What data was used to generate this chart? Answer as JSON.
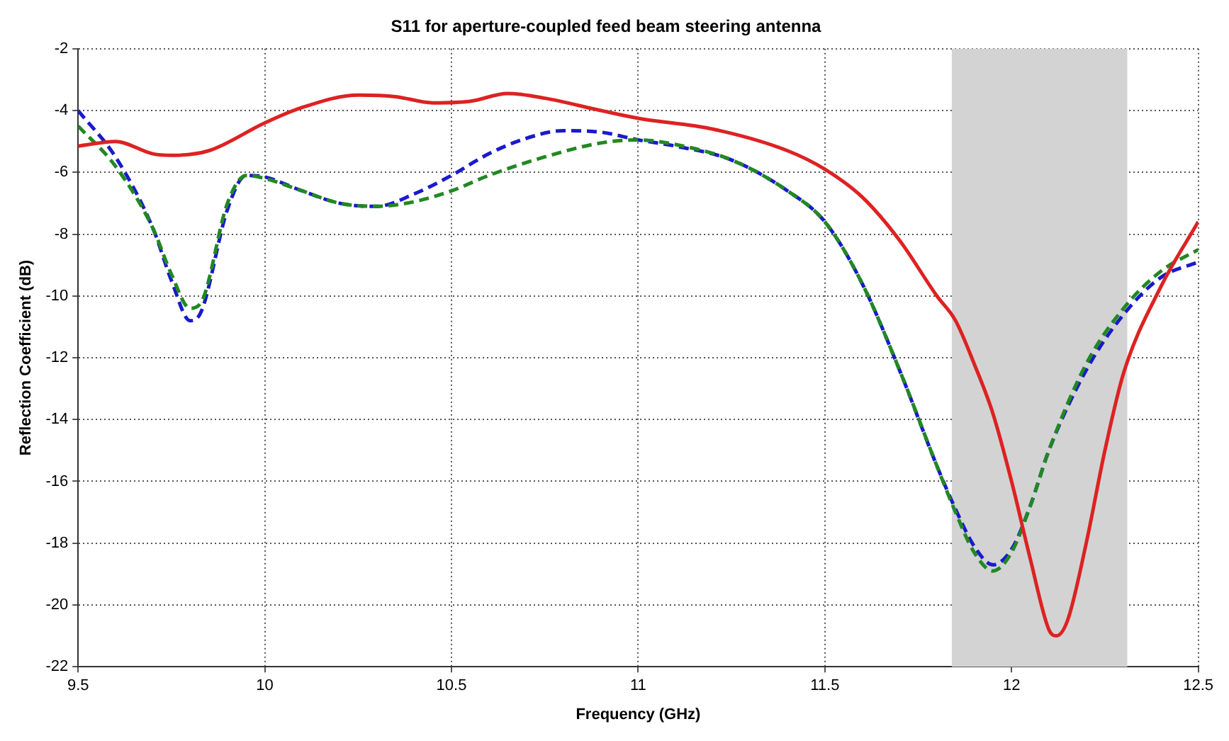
{
  "chart_data": {
    "type": "line",
    "title": "S11 for aperture-coupled feed beam steering antenna",
    "xlabel": "Frequency (GHz)",
    "ylabel": "Reflection Coefficient (dB)",
    "xlim": [
      9.5,
      12.5
    ],
    "xticks": [
      9.5,
      10,
      10.5,
      11,
      11.5,
      12,
      12.5
    ],
    "ylim": [
      -22,
      -2
    ],
    "yticks": [
      -22,
      -20,
      -18,
      -16,
      -14,
      -12,
      -10,
      -8,
      -6,
      -4,
      -2
    ],
    "grid": true,
    "marker": "none",
    "bands": [
      {
        "axis": "x",
        "from": 11.84,
        "to": 12.31,
        "color": "#d3d3d3"
      }
    ],
    "series": [
      {
        "color": "#dd2222",
        "line_style": "solid",
        "x": [
          9.5,
          9.6,
          9.7,
          9.75,
          9.85,
          10.0,
          10.1,
          10.25,
          10.35,
          10.45,
          10.55,
          10.65,
          10.75,
          10.9,
          11.0,
          11.2,
          11.4,
          11.5,
          11.6,
          11.7,
          11.8,
          11.85,
          11.9,
          11.95,
          12.0,
          12.05,
          12.1,
          12.12,
          12.15,
          12.2,
          12.25,
          12.3,
          12.4,
          12.5
        ],
        "values": [
          -5.15,
          -5.0,
          -5.4,
          -5.45,
          -5.3,
          -4.4,
          -3.9,
          -3.5,
          -3.55,
          -3.75,
          -3.7,
          -3.45,
          -3.6,
          -4.0,
          -4.25,
          -4.6,
          -5.3,
          -5.9,
          -6.8,
          -8.2,
          -10.0,
          -10.8,
          -12.2,
          -13.8,
          -16.0,
          -18.5,
          -20.8,
          -21.0,
          -20.5,
          -18.0,
          -15.0,
          -12.5,
          -9.7,
          -7.6
        ]
      },
      {
        "color": "#228822",
        "line_style": "dashed",
        "x": [
          9.5,
          9.6,
          9.7,
          9.75,
          9.8,
          9.83,
          9.9,
          9.95,
          10.0,
          10.1,
          10.2,
          10.3,
          10.4,
          10.5,
          10.6,
          10.75,
          10.9,
          11.0,
          11.1,
          11.25,
          11.4,
          11.5,
          11.6,
          11.7,
          11.8,
          11.85,
          11.9,
          11.95,
          12.0,
          12.05,
          12.1,
          12.2,
          12.3,
          12.4,
          12.5
        ],
        "values": [
          -4.5,
          -5.8,
          -7.8,
          -9.3,
          -10.4,
          -10.2,
          -7.0,
          -6.1,
          -6.2,
          -6.6,
          -7.0,
          -7.1,
          -6.95,
          -6.6,
          -6.1,
          -5.5,
          -5.05,
          -4.95,
          -5.1,
          -5.6,
          -6.6,
          -7.6,
          -9.6,
          -12.4,
          -15.5,
          -17.0,
          -18.3,
          -18.9,
          -18.3,
          -16.8,
          -15.0,
          -12.2,
          -10.4,
          -9.2,
          -8.5
        ]
      },
      {
        "color": "#1a1acc",
        "line_style": "dashed",
        "x": [
          9.5,
          9.6,
          9.7,
          9.75,
          9.8,
          9.83,
          9.9,
          9.95,
          10.0,
          10.1,
          10.2,
          10.3,
          10.4,
          10.5,
          10.6,
          10.7,
          10.8,
          10.9,
          11.0,
          11.1,
          11.25,
          11.4,
          11.5,
          11.6,
          11.7,
          11.8,
          11.85,
          11.9,
          11.95,
          12.0,
          12.05,
          12.1,
          12.2,
          12.3,
          12.4,
          12.5
        ],
        "values": [
          -4.0,
          -5.5,
          -7.8,
          -9.5,
          -10.8,
          -10.5,
          -7.2,
          -6.1,
          -6.15,
          -6.6,
          -7.0,
          -7.1,
          -6.7,
          -6.1,
          -5.4,
          -4.9,
          -4.65,
          -4.7,
          -4.95,
          -5.15,
          -5.6,
          -6.6,
          -7.6,
          -9.6,
          -12.4,
          -15.5,
          -16.9,
          -18.1,
          -18.7,
          -18.2,
          -16.8,
          -15.0,
          -12.4,
          -10.6,
          -9.4,
          -8.9
        ]
      }
    ]
  }
}
